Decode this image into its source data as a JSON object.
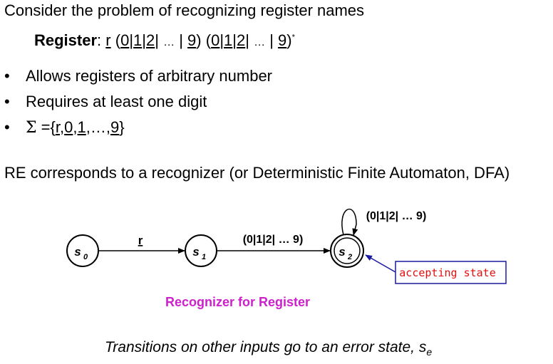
{
  "intro": "Consider the problem of recognizing register names",
  "regex": {
    "label": "Register",
    "colon": ":",
    "r": "r",
    "open1": "(",
    "d0a": "0",
    "d1a": "1",
    "d2a": "2",
    "ellipsis1": "…",
    "d9a": "9",
    "close1": ")",
    "open2": "(",
    "d0b": "0",
    "d1b": "1",
    "d2b": "2",
    "ellipsis2": "…",
    "d9b": "9",
    "close2": ")",
    "star": "*"
  },
  "bullets": [
    "Allows registers of arbitrary number",
    "Requires at least one digit"
  ],
  "sigma": {
    "symbol": "Σ",
    "eq": " ={",
    "r": "r",
    "d0": "0",
    "d1": "1",
    "dots": ",…,",
    "d9": "9",
    "end": "}"
  },
  "re_line": "RE corresponds to a recognizer (or Deterministic Finite Automaton, DFA)",
  "dfa": {
    "states": [
      {
        "name": "s",
        "sub": "0"
      },
      {
        "name": "s",
        "sub": "1"
      },
      {
        "name": "s",
        "sub": "2"
      }
    ],
    "t01_label": "r",
    "t12_label": "(0|1|2| … 9)",
    "loop_label": "(0|1|2| … 9)",
    "accepting_label": "accepting state",
    "colors": {
      "callout_border": "#1a1aa0",
      "callout_text": "#e01010",
      "callout_arrow": "#1a1aa0"
    }
  },
  "caption": {
    "prefix": "Recognizer for ",
    "name": "Register"
  },
  "footer": {
    "text": "Transitions on other inputs go to an error state, ",
    "s": "s",
    "sub": "e"
  }
}
